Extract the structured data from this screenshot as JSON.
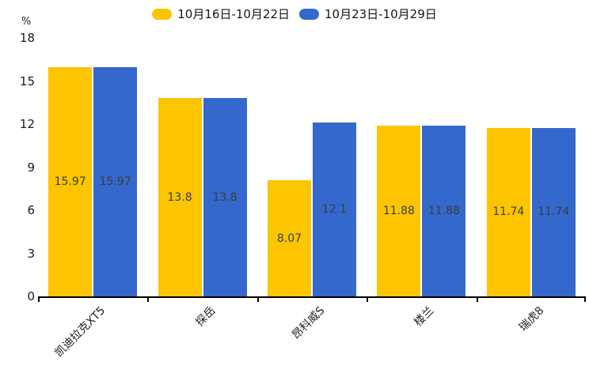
{
  "chart_data": {
    "type": "bar",
    "title": "",
    "ylabel": "%",
    "xlabel": "",
    "categories": [
      "凯迪拉克XT5",
      "探岳",
      "昂科威S",
      "楼兰",
      "瑞虎8"
    ],
    "series": [
      {
        "name": "10月16日-10月22日",
        "color": "#FCC500",
        "values": [
          15.97,
          13.8,
          8.07,
          11.88,
          11.74
        ]
      },
      {
        "name": "10月23日-10月29日",
        "color": "#3468CD",
        "values": [
          15.97,
          13.8,
          12.1,
          11.88,
          11.74
        ]
      }
    ],
    "ylim": [
      0,
      18
    ],
    "yticks": [
      0,
      3,
      6,
      9,
      12,
      15,
      18
    ],
    "grid": false,
    "legend_position": "top-center",
    "value_label_position": "inside-center",
    "x_tick_rotation": 45,
    "axis_color": "#000000",
    "text_color": "#222222",
    "value_label_color": "#3c3c3c"
  }
}
